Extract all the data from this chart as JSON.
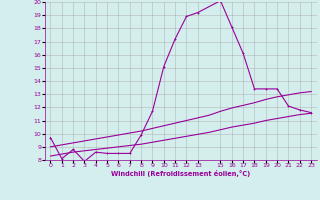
{
  "bg_color": "#d4eeee",
  "line_color": "#990099",
  "grid_color": "#aaaaaa",
  "xlabel": "Windchill (Refroidissement éolien,°C)",
  "xlim": [
    -0.5,
    23.5
  ],
  "ylim": [
    8,
    20
  ],
  "yticks": [
    8,
    9,
    10,
    11,
    12,
    13,
    14,
    15,
    16,
    17,
    18,
    19,
    20
  ],
  "xticks": [
    0,
    1,
    2,
    3,
    4,
    5,
    6,
    7,
    8,
    9,
    10,
    11,
    12,
    13,
    15,
    16,
    17,
    18,
    19,
    20,
    21,
    22,
    23
  ],
  "curve1_x": [
    0,
    1,
    2,
    3,
    4,
    5,
    6,
    7,
    8,
    9,
    10,
    11,
    12,
    13,
    15,
    16,
    17,
    18,
    19,
    20,
    21,
    22,
    23
  ],
  "curve1_y": [
    9.7,
    8.1,
    8.8,
    7.9,
    8.6,
    8.5,
    8.5,
    8.5,
    9.9,
    11.7,
    15.1,
    17.2,
    18.9,
    19.2,
    20.1,
    18.1,
    16.1,
    13.4,
    13.4,
    13.4,
    12.1,
    11.8,
    11.6
  ],
  "curve2_x": [
    0,
    1,
    2,
    3,
    4,
    5,
    6,
    7,
    8,
    9,
    10,
    11,
    12,
    13,
    14,
    15,
    16,
    17,
    18,
    19,
    20,
    21,
    22,
    23
  ],
  "curve2_y": [
    9.0,
    9.15,
    9.3,
    9.45,
    9.6,
    9.75,
    9.9,
    10.05,
    10.2,
    10.4,
    10.6,
    10.8,
    11.0,
    11.2,
    11.4,
    11.7,
    11.95,
    12.15,
    12.35,
    12.6,
    12.8,
    12.95,
    13.1,
    13.2
  ],
  "curve3_x": [
    0,
    1,
    2,
    3,
    4,
    5,
    6,
    7,
    8,
    9,
    10,
    11,
    12,
    13,
    14,
    15,
    16,
    17,
    18,
    19,
    20,
    21,
    22,
    23
  ],
  "curve3_y": [
    8.3,
    8.45,
    8.6,
    8.7,
    8.8,
    8.9,
    9.0,
    9.1,
    9.2,
    9.35,
    9.5,
    9.65,
    9.8,
    9.95,
    10.1,
    10.3,
    10.5,
    10.65,
    10.8,
    11.0,
    11.15,
    11.3,
    11.45,
    11.55
  ]
}
